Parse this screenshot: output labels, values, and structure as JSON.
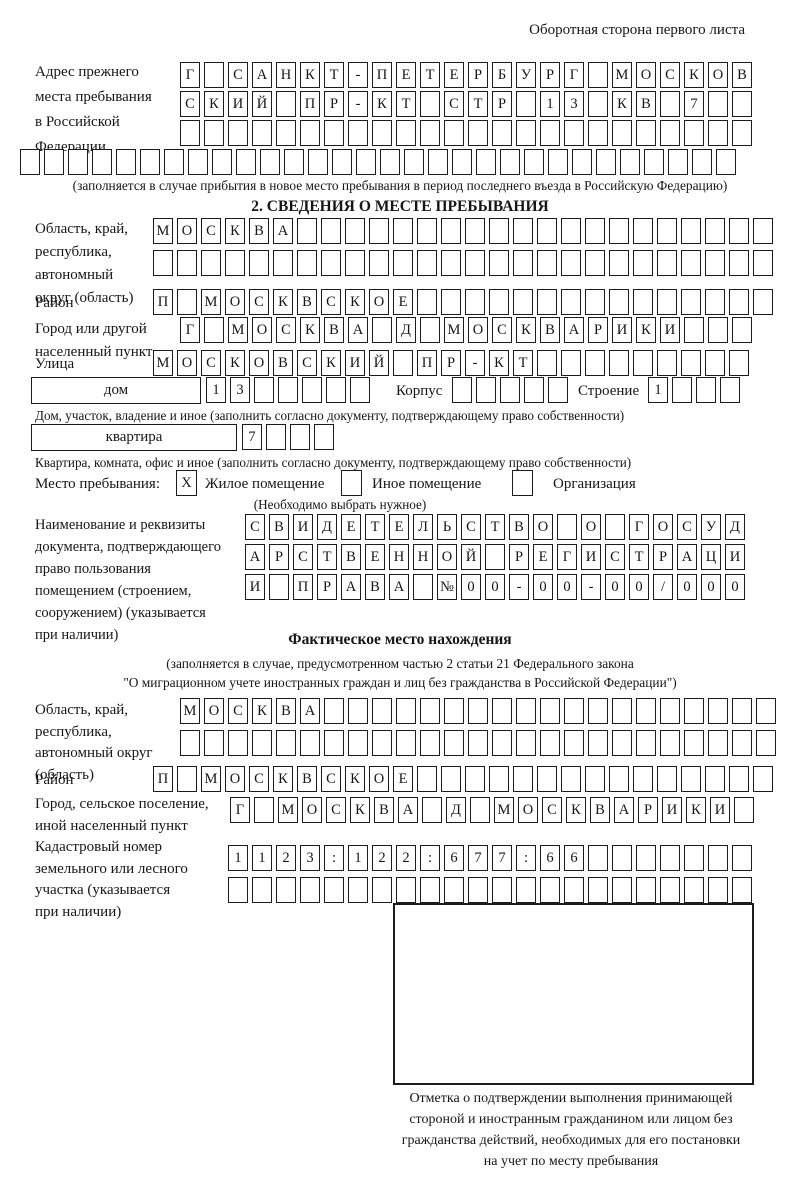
{
  "page": {
    "header_note": "Оборотная сторона первого листа"
  },
  "prev_address": {
    "label_lines": [
      "Адрес прежнего",
      "места пребывания",
      "в Российской",
      "Федерации"
    ],
    "row1": {
      "text": "Г САНКТ-ПЕТЕРБУРГ МОСКОВ",
      "count": 24
    },
    "row2": {
      "text": "СКИЙ ПР-КТ СТР 13 КВ 7",
      "count": 24
    },
    "row3": {
      "text": "",
      "count": 24
    },
    "row4": {
      "text": "",
      "count": 30
    },
    "note": "(заполняется в случае прибытия в новое место пребывания в период последнего въезда в Российскую Федерацию)"
  },
  "section2": {
    "title": "2. СВЕДЕНИЯ О МЕСТЕ ПРЕБЫВАНИЯ",
    "oblast": {
      "label_lines": [
        "Область, край,",
        "республика,",
        "автономный",
        "округ (область)"
      ],
      "row1": {
        "text": "МОСКВА",
        "count": 26
      },
      "row2": {
        "text": "",
        "count": 26
      }
    },
    "rayon": {
      "label": "Район",
      "row": {
        "text": "П МОСКВСКОЕ",
        "count": 26
      }
    },
    "city": {
      "label_lines": [
        "Город или другой",
        "населенный пункт"
      ],
      "row": {
        "text": "Г МОСКВА Д МОСКВАРИКИ",
        "count": 24
      }
    },
    "street": {
      "label": "Улица",
      "row": {
        "text": "МОСКОВСКИЙ ПР-КТ",
        "count": 25
      }
    },
    "house": {
      "box_label": "дом",
      "cells": {
        "text": "13",
        "count": 7
      },
      "korpus_label": "Корпус",
      "korpus_cells": {
        "text": "",
        "count": 5
      },
      "stroenie_label": "Строение",
      "stroenie_cells": {
        "text": "1",
        "count": 4
      },
      "note": "Дом, участок, владение и иное (заполнить согласно документу, подтверждающему право собственности)"
    },
    "apartment": {
      "box_label": "квартира",
      "cells": {
        "text": "7",
        "count": 4
      },
      "note": "Квартира, комната, офис и иное (заполнить согласно документу, подтверждающему право собственности)"
    },
    "stay_type": {
      "label": "Место пребывания:",
      "marks": [
        "X",
        "",
        ""
      ],
      "options": [
        "Жилое помещение",
        "Иное помещение",
        "Организация"
      ],
      "note": "(Необходимо выбрать нужное)"
    },
    "doc": {
      "label_lines": [
        "Наименование и реквизиты",
        "документа, подтверждающего",
        "право пользования",
        "помещением (строением,",
        "сооружением) (указывается",
        "при наличии)"
      ],
      "row1": {
        "text": "СВИДЕТЕЛЬСТВО О ГОСУД",
        "count": 21
      },
      "row2": {
        "text": "АРСТВЕННОЙ РЕГИСТРАЦИ",
        "count": 21
      },
      "row3": {
        "text": "И ПРАВА №00-00-00/000",
        "count": 21
      }
    }
  },
  "actual_location": {
    "title": "Фактическое место нахождения",
    "note_lines": [
      "(заполняется в случае, предусмотренном частью 2 статьи 21 Федерального закона",
      "\"О миграционном учете иностранных граждан и лиц без гражданства в Российской Федерации\")"
    ],
    "oblast": {
      "label_lines": [
        "Область, край,",
        "республика,",
        "автономный округ",
        "(область)"
      ],
      "row1": {
        "text": "МОСКВА",
        "count": 25
      },
      "row2": {
        "text": "",
        "count": 25
      }
    },
    "rayon": {
      "label": "Район",
      "row": {
        "text": "П МОСКВСКОЕ",
        "count": 26
      }
    },
    "city": {
      "label_lines": [
        "Город, сельское поселение,",
        "иной населенный пункт"
      ],
      "row": {
        "text": "Г МОСКВА Д МОСКВАРИКИ",
        "count": 22
      }
    },
    "cadastre": {
      "label_lines": [
        "Кадастровый номер",
        "земельного или лесного",
        "участка (указывается",
        "при наличии)"
      ],
      "row1": {
        "text": "1123:122:677:66",
        "count": 22
      },
      "row2": {
        "text": "",
        "count": 22
      }
    },
    "stamp_note_lines": [
      "Отметка о подтверждении выполнения принимающей",
      "стороной и иностранным гражданином или лицом без",
      "гражданства действий, необходимых для его постановки",
      "на учет по месту пребывания"
    ]
  }
}
